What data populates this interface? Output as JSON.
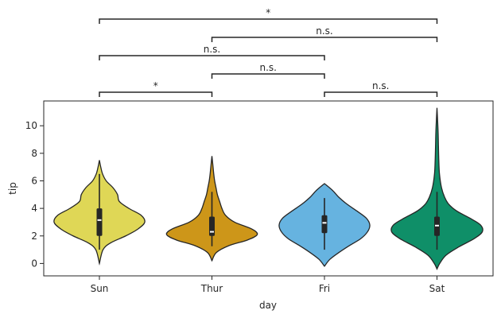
{
  "chart_data": {
    "type": "violin",
    "xlabel": "day",
    "ylabel": "tip",
    "ylim": [
      -0.9,
      11.8
    ],
    "yticks": [
      0,
      2,
      4,
      6,
      8,
      10
    ],
    "grid": false,
    "categories": [
      "Sun",
      "Thur",
      "Fri",
      "Sat"
    ],
    "violins": [
      {
        "category": "Sun",
        "color": "#dfd756",
        "min": 1.0,
        "q1": 2.0,
        "median": 3.15,
        "q3": 4.0,
        "max": 6.5,
        "profile": [
          [
            0.0,
            0.0
          ],
          [
            1.0,
            0.08
          ],
          [
            1.5,
            0.25
          ],
          [
            2.0,
            0.58
          ],
          [
            2.5,
            0.85
          ],
          [
            3.0,
            1.0
          ],
          [
            3.5,
            0.92
          ],
          [
            4.0,
            0.65
          ],
          [
            4.5,
            0.44
          ],
          [
            5.0,
            0.4
          ],
          [
            5.5,
            0.3
          ],
          [
            6.0,
            0.15
          ],
          [
            6.5,
            0.07
          ],
          [
            7.0,
            0.03
          ],
          [
            7.5,
            0.0
          ]
        ]
      },
      {
        "category": "Thur",
        "color": "#cd9619",
        "min": 1.25,
        "q1": 2.0,
        "median": 2.3,
        "q3": 3.4,
        "max": 5.2,
        "profile": [
          [
            0.2,
            0.0
          ],
          [
            0.8,
            0.1
          ],
          [
            1.3,
            0.38
          ],
          [
            1.7,
            0.78
          ],
          [
            2.1,
            1.0
          ],
          [
            2.5,
            0.88
          ],
          [
            3.0,
            0.5
          ],
          [
            3.5,
            0.3
          ],
          [
            4.0,
            0.22
          ],
          [
            4.5,
            0.17
          ],
          [
            5.0,
            0.12
          ],
          [
            5.5,
            0.09
          ],
          [
            6.0,
            0.06
          ],
          [
            6.5,
            0.04
          ],
          [
            7.0,
            0.025
          ],
          [
            7.8,
            0.0
          ]
        ]
      },
      {
        "category": "Fri",
        "color": "#66b3e0",
        "min": 1.0,
        "q1": 2.2,
        "median": 2.95,
        "q3": 3.5,
        "max": 4.75,
        "profile": [
          [
            -0.2,
            0.0
          ],
          [
            0.3,
            0.12
          ],
          [
            0.8,
            0.32
          ],
          [
            1.3,
            0.55
          ],
          [
            1.8,
            0.8
          ],
          [
            2.3,
            0.95
          ],
          [
            2.8,
            1.0
          ],
          [
            3.3,
            0.92
          ],
          [
            3.8,
            0.72
          ],
          [
            4.3,
            0.5
          ],
          [
            4.8,
            0.32
          ],
          [
            5.3,
            0.18
          ],
          [
            5.8,
            0.0
          ]
        ]
      },
      {
        "category": "Sat",
        "color": "#0f8f68",
        "min": 1.0,
        "q1": 2.0,
        "median": 2.75,
        "q3": 3.4,
        "max": 5.2,
        "profile": [
          [
            -0.4,
            0.0
          ],
          [
            0.0,
            0.06
          ],
          [
            0.6,
            0.2
          ],
          [
            1.2,
            0.48
          ],
          [
            1.8,
            0.82
          ],
          [
            2.3,
            1.0
          ],
          [
            2.8,
            0.96
          ],
          [
            3.3,
            0.72
          ],
          [
            3.8,
            0.44
          ],
          [
            4.3,
            0.26
          ],
          [
            4.8,
            0.17
          ],
          [
            5.5,
            0.1
          ],
          [
            6.5,
            0.055
          ],
          [
            7.5,
            0.04
          ],
          [
            8.5,
            0.032
          ],
          [
            9.5,
            0.025
          ],
          [
            10.5,
            0.012
          ],
          [
            11.3,
            0.0
          ]
        ]
      }
    ],
    "annotations": [
      {
        "from": "Sun",
        "to": "Thur",
        "label": "*",
        "level": 1
      },
      {
        "from": "Fri",
        "to": "Sat",
        "label": "n.s.",
        "level": 1
      },
      {
        "from": "Thur",
        "to": "Fri",
        "label": "n.s.",
        "level": 2
      },
      {
        "from": "Sun",
        "to": "Fri",
        "label": "n.s.",
        "level": 3
      },
      {
        "from": "Thur",
        "to": "Sat",
        "label": "n.s.",
        "level": 4
      },
      {
        "from": "Sun",
        "to": "Sat",
        "label": "*",
        "level": 5
      }
    ]
  }
}
